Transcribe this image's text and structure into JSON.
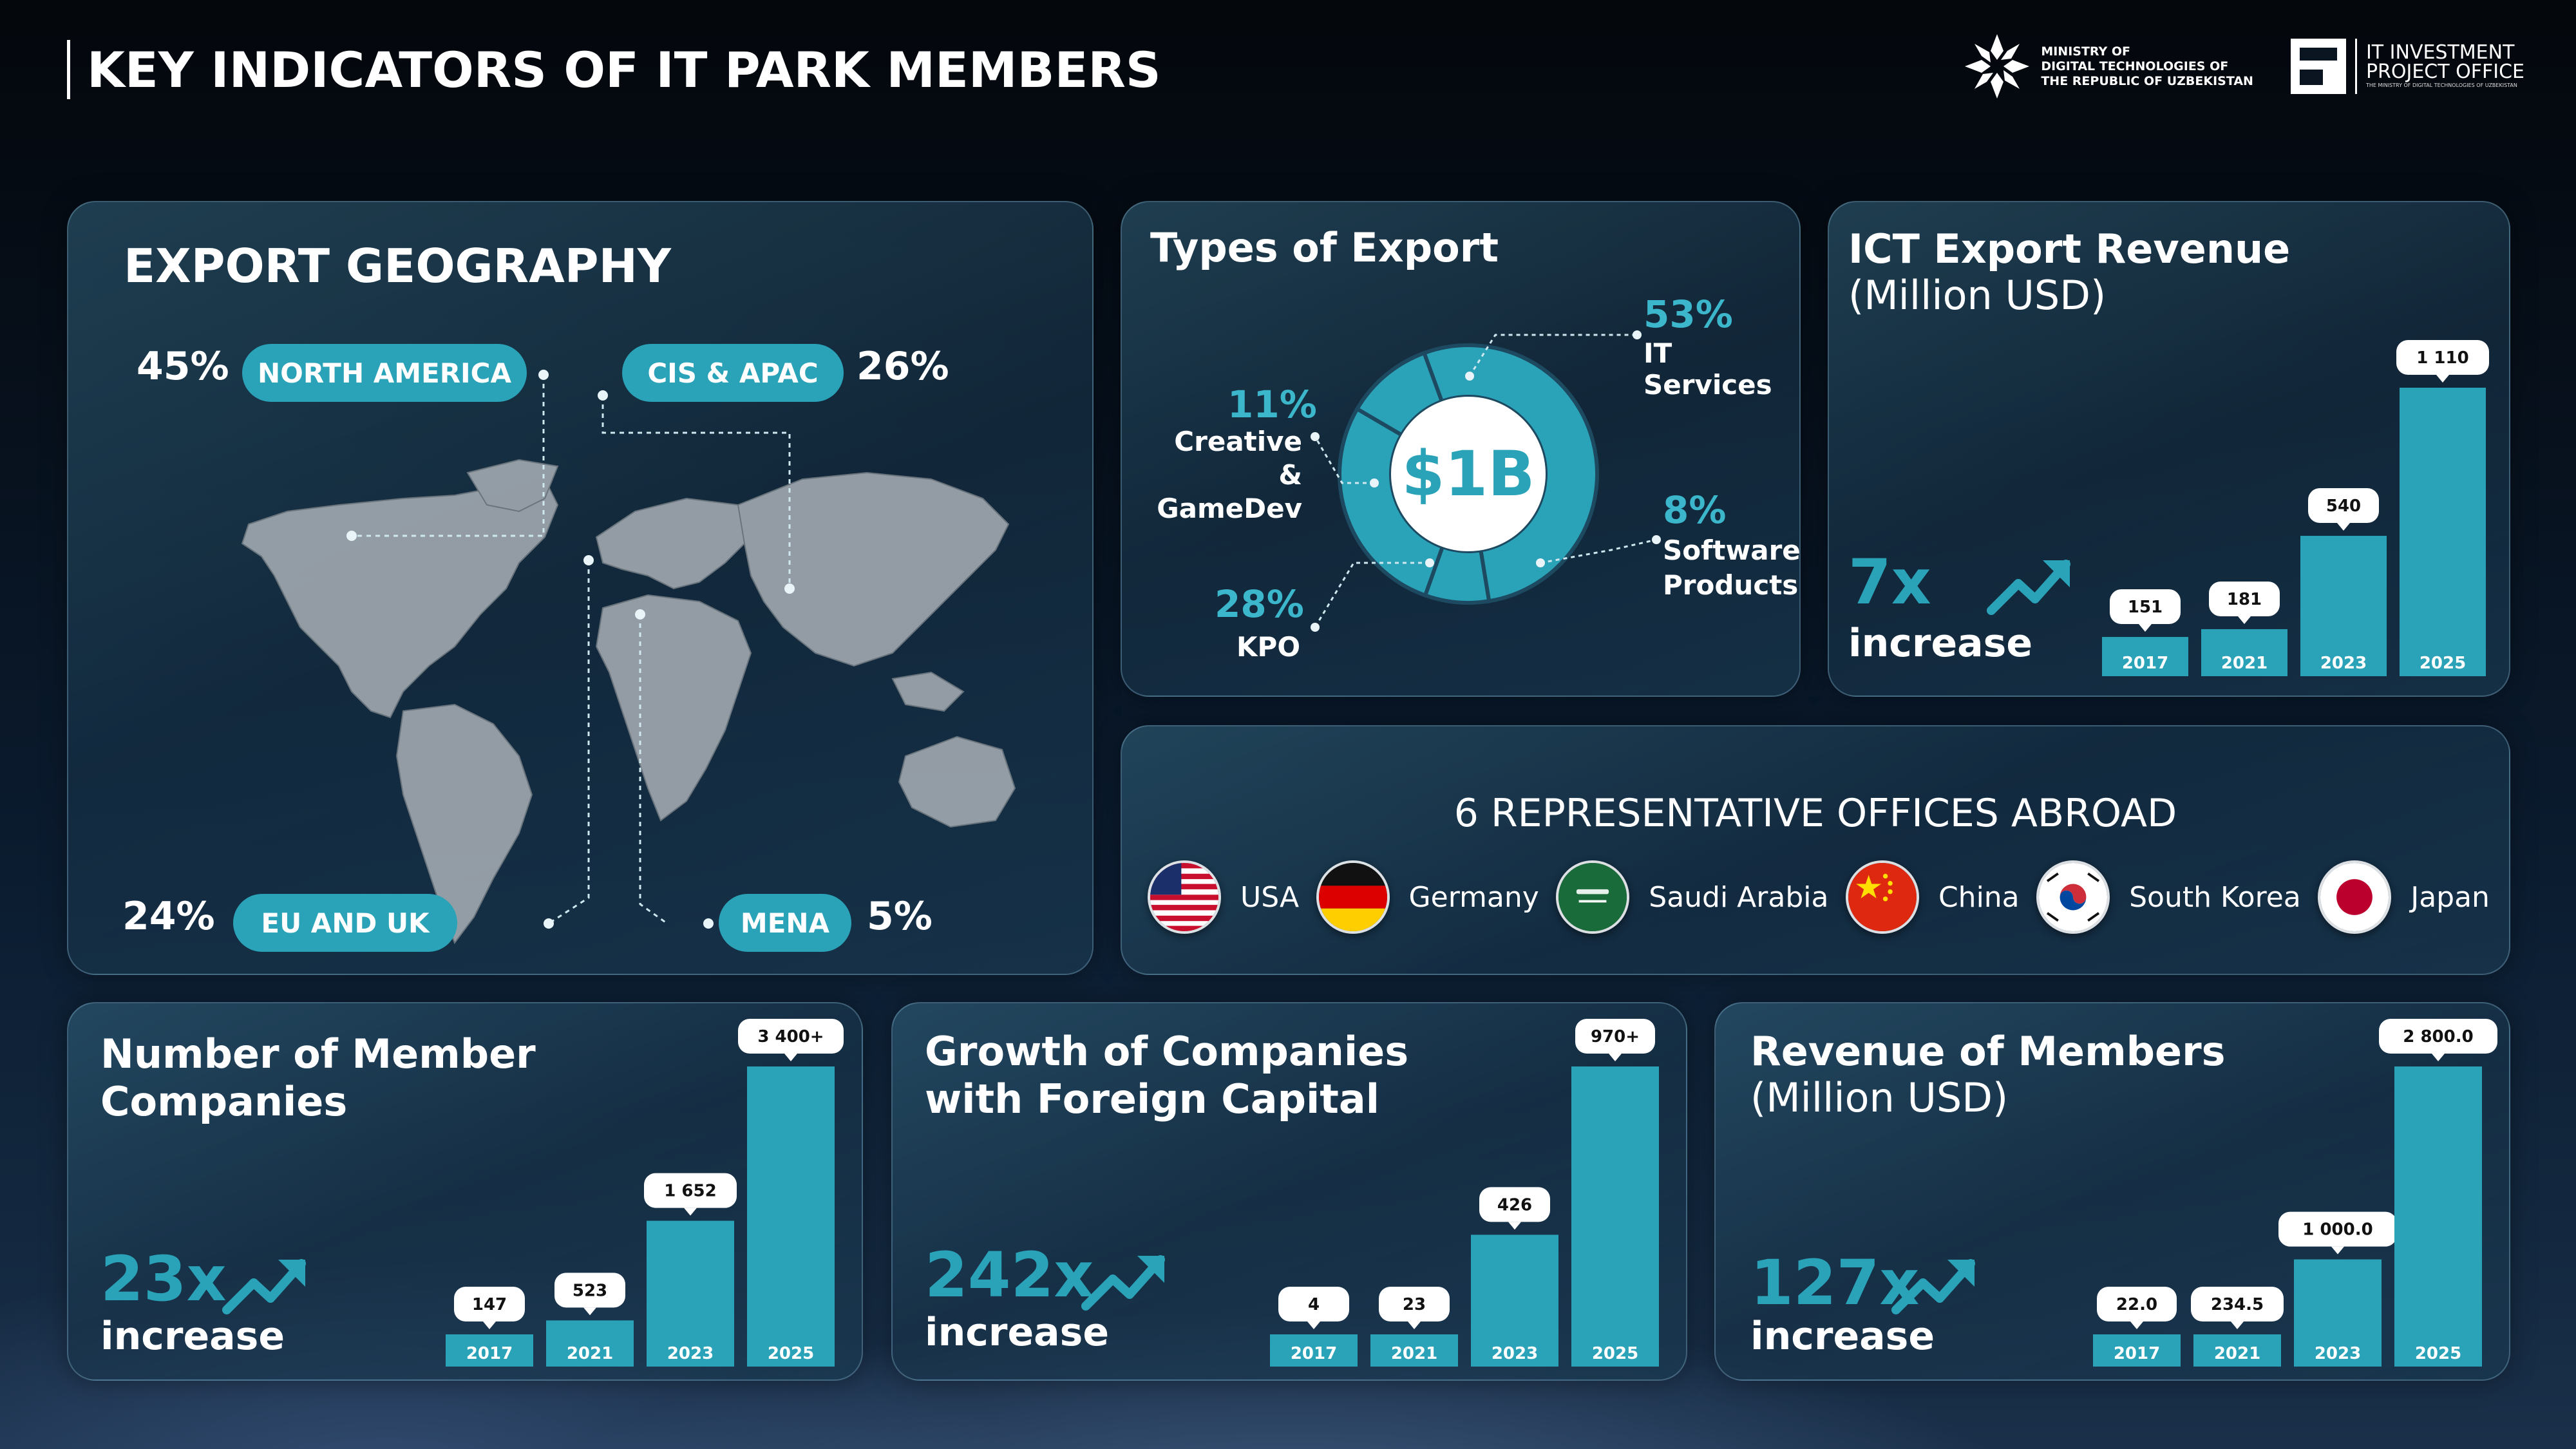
{
  "header": {
    "title": "KEY INDICATORS OF IT PARK MEMBERS",
    "logo1_text": "MINISTRY OF\nDIGITAL TECHNOLOGIES OF\nTHE REPUBLIC OF UZBEKISTAN",
    "logo2_title": "IT INVESTMENT\nPROJECT OFFICE",
    "logo2_sub": "THE MINISTRY OF DIGITAL TECHNOLOGIES OF UZBEKISTAN"
  },
  "geography": {
    "title": "EXPORT GEOGRAPHY",
    "regions": [
      {
        "name": "NORTH AMERICA",
        "share": "45%"
      },
      {
        "name": "CIS & APAC",
        "share": "26%"
      },
      {
        "name": "EU AND UK",
        "share": "24%"
      },
      {
        "name": "MENA",
        "share": "5%"
      }
    ]
  },
  "types": {
    "title": "Types of Export",
    "center": "$1B",
    "segments": [
      {
        "pct": "53%",
        "label": "IT Services",
        "value": 53
      },
      {
        "pct": "8%",
        "label": "Software\nProducts",
        "value": 8
      },
      {
        "pct": "28%",
        "label": "KPO",
        "value": 28
      },
      {
        "pct": "11%",
        "label": "Creative\n& GameDev",
        "value": 11
      }
    ]
  },
  "offices": {
    "title": "6 REPRESENTATIVE OFFICES ABROAD",
    "countries": [
      "USA",
      "Germany",
      "Saudi Arabia",
      "China",
      "South Korea",
      "Japan"
    ]
  },
  "colors": {
    "accent": "#2aa3b8",
    "accent_light": "#3bb6cb"
  },
  "chart_data": [
    {
      "type": "bar",
      "title": "ICT Export Revenue",
      "subtitle": "(Million USD)",
      "categories": [
        "2017",
        "2021",
        "2023",
        "2025"
      ],
      "values": [
        151,
        181,
        540,
        1110
      ],
      "labels": [
        "151",
        "181",
        "540",
        "1 110"
      ],
      "ylim": [
        0,
        1110
      ],
      "increase": "7x",
      "increase_text": "increase"
    },
    {
      "type": "bar",
      "title": "Number of Member\nCompanies",
      "subtitle": "",
      "categories": [
        "2017",
        "2021",
        "2023",
        "2025"
      ],
      "values": [
        147,
        523,
        1652,
        3400
      ],
      "labels": [
        "147",
        "523",
        "1 652",
        "3 400+"
      ],
      "ylim": [
        0,
        3400
      ],
      "increase": "23x",
      "increase_text": "increase"
    },
    {
      "type": "bar",
      "title": "Growth of Companies\nwith Foreign Capital",
      "subtitle": "",
      "categories": [
        "2017",
        "2021",
        "2023",
        "2025"
      ],
      "values": [
        4,
        23,
        426,
        970
      ],
      "labels": [
        "4",
        "23",
        "426",
        "970+"
      ],
      "ylim": [
        0,
        970
      ],
      "increase": "242x",
      "increase_text": "increase"
    },
    {
      "type": "bar",
      "title": "Revenue of Members",
      "subtitle": "(Million USD)",
      "categories": [
        "2017",
        "2021",
        "2023",
        "2025"
      ],
      "values": [
        22.0,
        234.5,
        1000.0,
        2800.0
      ],
      "labels": [
        "22.0",
        "234.5",
        "1 000.0",
        "2 800.0"
      ],
      "ylim": [
        0,
        2800
      ],
      "increase": "127x",
      "increase_text": "increase"
    }
  ]
}
